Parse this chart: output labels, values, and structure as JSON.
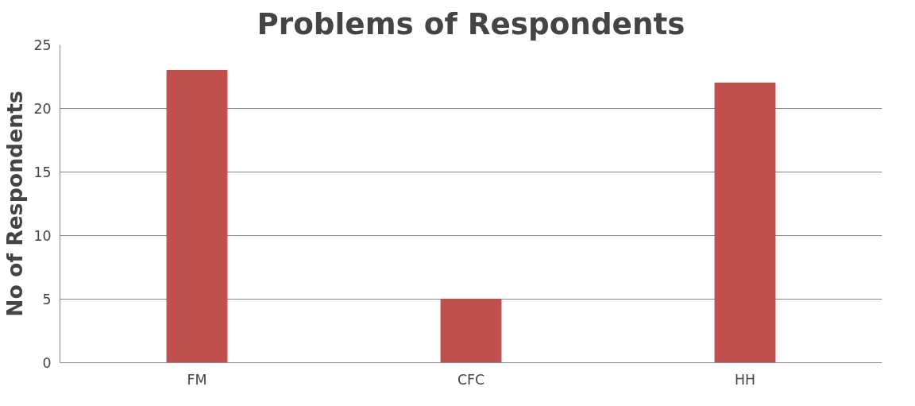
{
  "chart_data": {
    "type": "bar",
    "title": "Problems of Respondents",
    "ylabel": "No of Respondents",
    "categories": [
      "FM",
      "CFC",
      "HH"
    ],
    "series": [
      {
        "color": "#c0504d",
        "values": [
          23,
          5,
          22
        ]
      }
    ],
    "ylim": [
      0,
      25
    ],
    "yticks": [
      0,
      5,
      10,
      15,
      20,
      25
    ],
    "grid": "y"
  }
}
